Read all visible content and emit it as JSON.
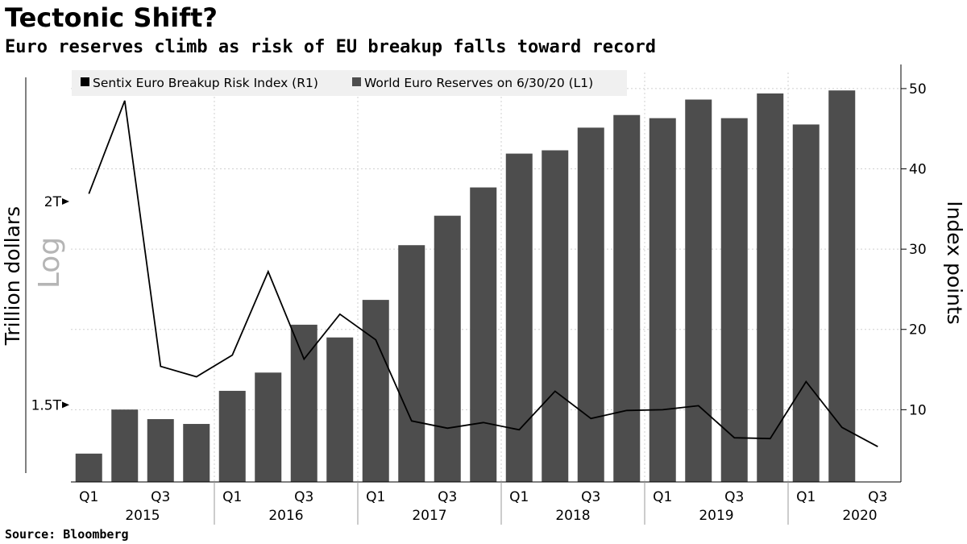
{
  "title": "Tectonic Shift?",
  "subtitle": "Euro reserves climb as risk of EU breakup falls toward record",
  "source": "Source: Bloomberg",
  "chart_data": {
    "type": "bar",
    "grid": true,
    "legend_placement": "top",
    "legend": [
      {
        "label": "Sentix Euro Breakup Risk Index (R1)",
        "color": "#000000"
      },
      {
        "label": "World Euro Reserves on 6/30/20 (L1)",
        "color": "#4d4d4d"
      }
    ],
    "left_axis": {
      "title": "Trillion dollars",
      "scale_note": "Log",
      "scale": "log",
      "range": [
        1.345,
        2.4
      ],
      "ticks": [
        {
          "value": 1.5,
          "label": "1.5T"
        },
        {
          "value": 2.0,
          "label": "2T"
        }
      ]
    },
    "right_axis": {
      "title": "Index points",
      "range": [
        1,
        52
      ],
      "ticks": [
        10,
        20,
        30,
        40,
        50
      ]
    },
    "x_axis": {
      "quarter_labels": [
        "Q1",
        "Q3",
        "Q1",
        "Q3",
        "Q1",
        "Q3",
        "Q1",
        "Q3",
        "Q1",
        "Q3",
        "Q1",
        "Q3"
      ],
      "years": [
        "2015",
        "2016",
        "2017",
        "2018",
        "2019",
        "2020"
      ]
    },
    "series": [
      {
        "name": "World Euro Reserves on 6/30/20 (L1)",
        "type": "bar",
        "axis": "left",
        "color": "#4d4d4d",
        "values": [
          1.4,
          1.49,
          1.47,
          1.46,
          1.53,
          1.57,
          1.68,
          1.65,
          1.74,
          1.88,
          1.96,
          2.04,
          2.14,
          2.15,
          2.22,
          2.26,
          2.25,
          2.31,
          2.25,
          2.33,
          2.23,
          2.34
        ]
      },
      {
        "name": "Sentix Euro Breakup Risk Index (R1)",
        "type": "line",
        "axis": "right",
        "color": "#000000",
        "values": [
          36.9,
          48.5,
          15.4,
          14.1,
          16.8,
          27.2,
          16.3,
          21.9,
          18.7,
          8.6,
          7.7,
          8.4,
          7.5,
          12.3,
          8.9,
          9.9,
          10.0,
          10.5,
          6.5,
          6.4,
          13.5,
          7.8,
          5.4
        ]
      }
    ]
  }
}
